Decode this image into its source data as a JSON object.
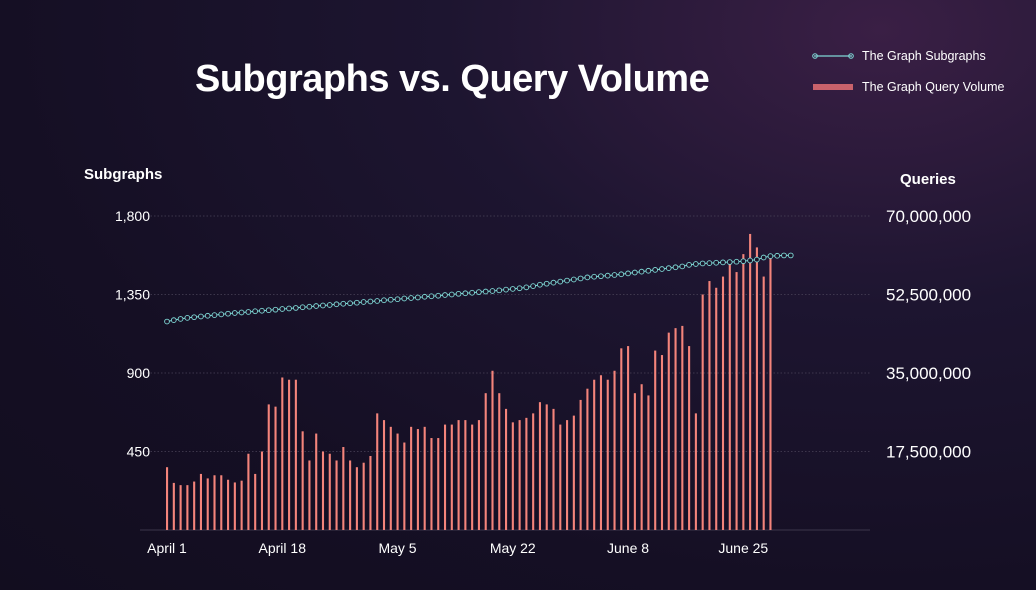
{
  "chart_data": {
    "type": "bar",
    "title": "Subgraphs vs. Query Volume",
    "ylabel": "Subgraphs",
    "ylabel_right": "Queries",
    "ylim": [
      0,
      1800
    ],
    "ylim_right": [
      0,
      70000000
    ],
    "left_ticks": [
      "1,800",
      "1,350",
      "900",
      "450"
    ],
    "left_tick_values": [
      1800,
      1350,
      900,
      450
    ],
    "right_ticks": [
      "70,000,000",
      "52,500,000",
      "35,000,000",
      "17,500,000"
    ],
    "x_tick_labels": [
      "April 1",
      "April 18",
      "May 5",
      "May 22",
      "June 8",
      "June 25"
    ],
    "x_tick_days": [
      0,
      17,
      34,
      51,
      68,
      85
    ],
    "grid": "horizontal-dotted",
    "legend": "top-right",
    "colors": {
      "subgraphs": "#7fd8d6",
      "queries": "#f4847b",
      "legend_queries": "#c9626b"
    },
    "series": [
      {
        "name": "The Graph Subgraphs",
        "type": "line",
        "axis": "left",
        "values": [
          1195,
          1203,
          1210,
          1216,
          1220,
          1224,
          1228,
          1232,
          1236,
          1240,
          1244,
          1247,
          1250,
          1254,
          1257,
          1260,
          1263,
          1267,
          1270,
          1273,
          1277,
          1280,
          1284,
          1287,
          1290,
          1294,
          1297,
          1300,
          1303,
          1307,
          1310,
          1313,
          1317,
          1320,
          1323,
          1327,
          1330,
          1333,
          1337,
          1340,
          1343,
          1347,
          1350,
          1354,
          1357,
          1360,
          1364,
          1367,
          1370,
          1374,
          1378,
          1382,
          1386,
          1391,
          1398,
          1406,
          1412,
          1418,
          1424,
          1430,
          1436,
          1442,
          1448,
          1452,
          1455,
          1458,
          1462,
          1466,
          1471,
          1476,
          1481,
          1486,
          1491,
          1496,
          1501,
          1506,
          1511,
          1520,
          1525,
          1528,
          1530,
          1532,
          1534,
          1536,
          1538,
          1541,
          1545,
          1550,
          1562,
          1570,
          1572,
          1574,
          1574
        ]
      },
      {
        "name": "The Graph Query Volume",
        "type": "bar",
        "axis": "right",
        "values": [
          14000000,
          10500000,
          10000000,
          10000000,
          10800000,
          12500000,
          11500000,
          12200000,
          12200000,
          11200000,
          10600000,
          11000000,
          17000000,
          12500000,
          17500000,
          28000000,
          27500000,
          34000000,
          33500000,
          33500000,
          22000000,
          15500000,
          21500000,
          17500000,
          17000000,
          15500000,
          18500000,
          15500000,
          14000000,
          15000000,
          16500000,
          26000000,
          24500000,
          23000000,
          21500000,
          19500000,
          23000000,
          22500000,
          23000000,
          20500000,
          20500000,
          23500000,
          23500000,
          24500000,
          24500000,
          23500000,
          24500000,
          30500000,
          35500000,
          30500000,
          27000000,
          24000000,
          24500000,
          25000000,
          26000000,
          28500000,
          28000000,
          27000000,
          23500000,
          24500000,
          25500000,
          29000000,
          31500000,
          33500000,
          34500000,
          33500000,
          35500000,
          40500000,
          41000000,
          30500000,
          32500000,
          30000000,
          40000000,
          39000000,
          44000000,
          45000000,
          45500000,
          41000000,
          26000000,
          52500000,
          55500000,
          54000000,
          56500000,
          60000000,
          57500000,
          61500000,
          66000000,
          63000000,
          56500000,
          61500000
        ]
      }
    ]
  }
}
